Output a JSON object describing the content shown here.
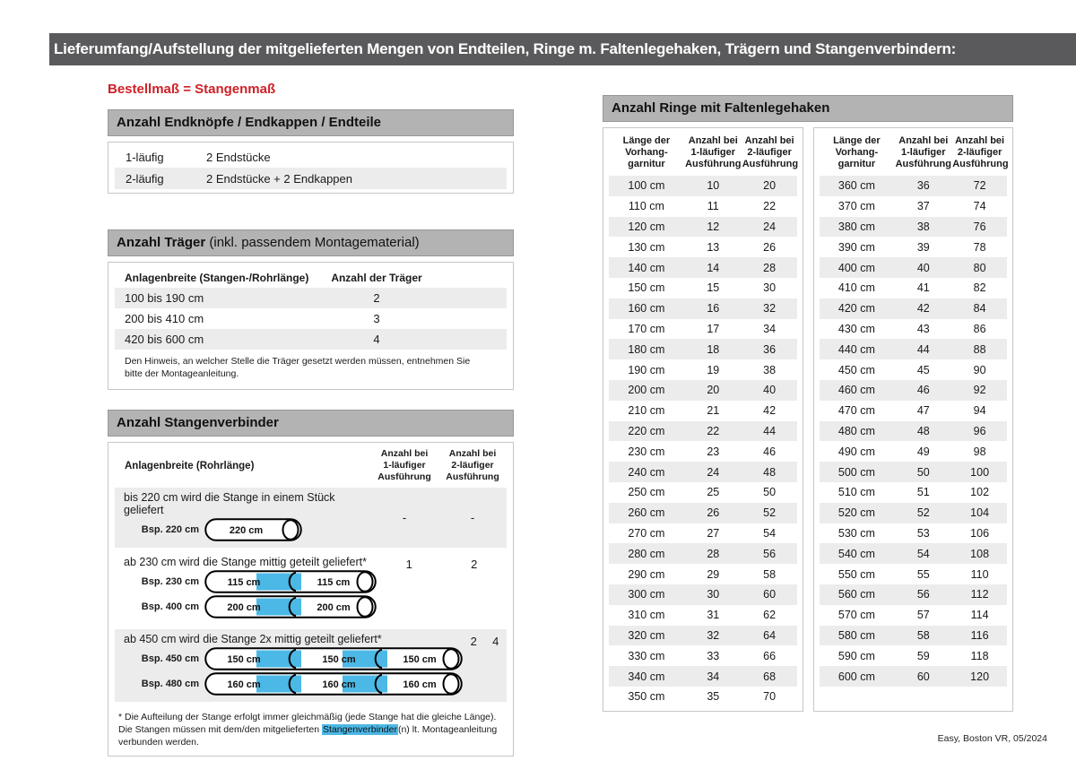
{
  "colors": {
    "accent_red": "#cf2027",
    "highlight_blue": "#4bb8e6",
    "titlebar_gray": "#5a5a5c",
    "section_header_gray": "#b3b3b3",
    "stripe_gray": "#ececec"
  },
  "page": {
    "title": "Lieferumfang/Aufstellung der mitgelieferten Mengen von Endteilen, Ringe m. Faltenlegehaken, Trägern und Stangenverbindern:",
    "subtitle": "Bestellmaß = Stangenmaß",
    "footer": "Easy, Boston VR, 05/2024"
  },
  "endteile": {
    "header": "Anzahl Endknöpfe / Endkappen / Endteile",
    "rows": [
      {
        "label": "1-läufig",
        "value": "2 Endstücke"
      },
      {
        "label": "2-läufig",
        "value": "2 Endstücke + 2 Endkappen"
      }
    ]
  },
  "traeger": {
    "header_bold": "Anzahl Träger",
    "header_rest": " (inkl. passendem Montagematerial)",
    "col1": "Anlagenbreite (Stangen-/Rohrlänge)",
    "col2": "Anzahl der Träger",
    "rows": [
      {
        "range": "100 bis 190 cm",
        "count": "2"
      },
      {
        "range": "200 bis 410 cm",
        "count": "3"
      },
      {
        "range": "420 bis 600 cm",
        "count": "4"
      }
    ],
    "note": "Den Hinweis, an welcher Stelle die Träger gesetzt werden müssen, entnehmen Sie bitte der Montageanleitung."
  },
  "verbinder": {
    "header": "Anzahl Stangenverbinder",
    "col1": "Anlagenbreite (Rohrlänge)",
    "col2": "Anzahl bei\n1-läufiger\nAusführung",
    "col3": "Anzahl bei\n2-läufiger\nAusführung",
    "blocks": [
      {
        "text": "bis 220 cm wird die Stange in einem Stück geliefert",
        "v1": "-",
        "v2": "-",
        "examples": [
          {
            "label": "Bsp. 220 cm",
            "segments": [
              "220 cm"
            ]
          }
        ]
      },
      {
        "text": "ab 230 cm wird die Stange mittig geteilt geliefert*",
        "v1": "1",
        "v2": "2",
        "examples": [
          {
            "label": "Bsp. 230 cm",
            "segments": [
              "115 cm",
              "115 cm"
            ]
          },
          {
            "label": "Bsp. 400 cm",
            "segments": [
              "200 cm",
              "200 cm"
            ]
          }
        ]
      },
      {
        "text": "ab 450 cm wird die Stange 2x mittig geteilt geliefert*",
        "v1": "2",
        "v2": "4",
        "examples": [
          {
            "label": "Bsp. 450 cm",
            "segments": [
              "150 cm",
              "150 cm",
              "150 cm"
            ]
          },
          {
            "label": "Bsp. 480 cm",
            "segments": [
              "160 cm",
              "160 cm",
              "160 cm"
            ]
          }
        ]
      }
    ],
    "footnote_pre": "* Die Aufteilung der Stange erfolgt immer gleichmäßig (jede Stange hat die gleiche Länge). Die Stangen müssen mit dem/den mitgelieferten ",
    "footnote_highlight": "Stangenverbinder",
    "footnote_post": "(n) lt. Montageanleitung verbunden werden."
  },
  "ringe": {
    "header": "Anzahl Ringe mit Faltenlegehaken",
    "col_headers": {
      "c0": "Länge der\nVorhang-\ngarnitur",
      "c1": "Anzahl bei\n1-läufiger\nAusführung",
      "c2": "Anzahl bei\n2-läufiger\nAusführung"
    },
    "table1": [
      [
        "100 cm",
        "10",
        "20"
      ],
      [
        "110 cm",
        "11",
        "22"
      ],
      [
        "120 cm",
        "12",
        "24"
      ],
      [
        "130 cm",
        "13",
        "26"
      ],
      [
        "140 cm",
        "14",
        "28"
      ],
      [
        "150 cm",
        "15",
        "30"
      ],
      [
        "160 cm",
        "16",
        "32"
      ],
      [
        "170 cm",
        "17",
        "34"
      ],
      [
        "180 cm",
        "18",
        "36"
      ],
      [
        "190 cm",
        "19",
        "38"
      ],
      [
        "200 cm",
        "20",
        "40"
      ],
      [
        "210 cm",
        "21",
        "42"
      ],
      [
        "220 cm",
        "22",
        "44"
      ],
      [
        "230 cm",
        "23",
        "46"
      ],
      [
        "240 cm",
        "24",
        "48"
      ],
      [
        "250 cm",
        "25",
        "50"
      ],
      [
        "260 cm",
        "26",
        "52"
      ],
      [
        "270 cm",
        "27",
        "54"
      ],
      [
        "280 cm",
        "28",
        "56"
      ],
      [
        "290 cm",
        "29",
        "58"
      ],
      [
        "300 cm",
        "30",
        "60"
      ],
      [
        "310 cm",
        "31",
        "62"
      ],
      [
        "320 cm",
        "32",
        "64"
      ],
      [
        "330 cm",
        "33",
        "66"
      ],
      [
        "340 cm",
        "34",
        "68"
      ],
      [
        "350 cm",
        "35",
        "70"
      ]
    ],
    "table2": [
      [
        "360 cm",
        "36",
        "72"
      ],
      [
        "370 cm",
        "37",
        "74"
      ],
      [
        "380 cm",
        "38",
        "76"
      ],
      [
        "390 cm",
        "39",
        "78"
      ],
      [
        "400 cm",
        "40",
        "80"
      ],
      [
        "410 cm",
        "41",
        "82"
      ],
      [
        "420 cm",
        "42",
        "84"
      ],
      [
        "430 cm",
        "43",
        "86"
      ],
      [
        "440 cm",
        "44",
        "88"
      ],
      [
        "450 cm",
        "45",
        "90"
      ],
      [
        "460 cm",
        "46",
        "92"
      ],
      [
        "470 cm",
        "47",
        "94"
      ],
      [
        "480 cm",
        "48",
        "96"
      ],
      [
        "490 cm",
        "49",
        "98"
      ],
      [
        "500 cm",
        "50",
        "100"
      ],
      [
        "510 cm",
        "51",
        "102"
      ],
      [
        "520 cm",
        "52",
        "104"
      ],
      [
        "530 cm",
        "53",
        "106"
      ],
      [
        "540 cm",
        "54",
        "108"
      ],
      [
        "550 cm",
        "55",
        "110"
      ],
      [
        "560 cm",
        "56",
        "112"
      ],
      [
        "570 cm",
        "57",
        "114"
      ],
      [
        "580 cm",
        "58",
        "116"
      ],
      [
        "590 cm",
        "59",
        "118"
      ],
      [
        "600 cm",
        "60",
        "120"
      ]
    ]
  }
}
